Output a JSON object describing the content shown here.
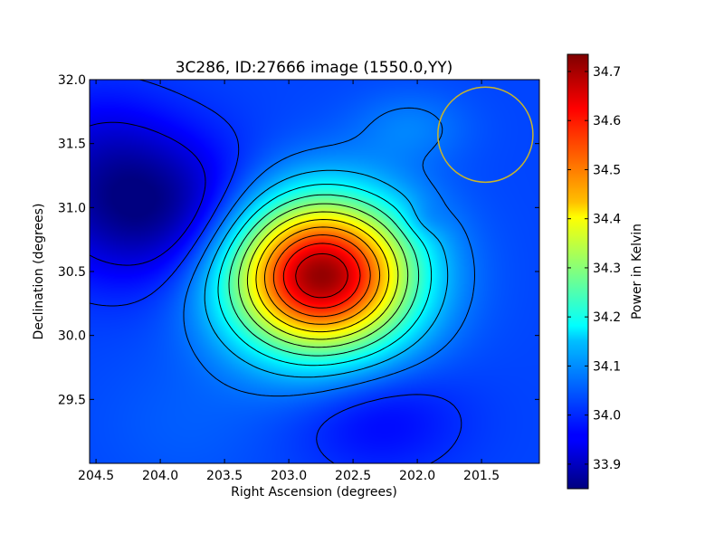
{
  "chart_data": {
    "type": "heatmap",
    "title": "3C286, ID:27666 image (1550.0,YY)",
    "xlabel": "Right Ascension (degrees)",
    "ylabel": "Declination (degrees)",
    "colorbar_label": "Power in Kelvin",
    "colormap": "jet",
    "x_direction": "decreasing",
    "xlim": [
      204.55,
      201.05
    ],
    "ylim": [
      29.0,
      32.0
    ],
    "x_ticks": [
      204.5,
      204.0,
      203.5,
      203.0,
      202.5,
      202.0,
      201.5
    ],
    "x_tick_labels": [
      "204.5",
      "204.0",
      "203.5",
      "203.0",
      "202.5",
      "202.0",
      "201.5"
    ],
    "y_ticks": [
      29.5,
      30.0,
      30.5,
      31.0,
      31.5,
      32.0
    ],
    "y_tick_labels": [
      "29.5",
      "30.0",
      "30.5",
      "31.0",
      "31.5",
      "32.0"
    ],
    "color_range": [
      33.85,
      34.735
    ],
    "colorbar_ticks": [
      33.9,
      34.0,
      34.1,
      34.2,
      34.3,
      34.4,
      34.5,
      34.6,
      34.7
    ],
    "colorbar_tick_labels": [
      "33.9",
      "34.0",
      "34.1",
      "34.2",
      "34.3",
      "34.4",
      "34.5",
      "34.6",
      "34.7"
    ],
    "background_level": 34.02,
    "features": [
      {
        "ra": 202.75,
        "dec": 30.47,
        "amplitude": 0.7,
        "sigma_ra": 0.5,
        "sigma_dec": 0.42
      },
      {
        "ra": 204.1,
        "dec": 31.0,
        "amplitude": -0.17,
        "sigma_ra": 0.55,
        "sigma_dec": 0.4
      },
      {
        "ra": 204.5,
        "dec": 31.5,
        "amplitude": -0.05,
        "sigma_ra": 0.4,
        "sigma_dec": 0.35
      },
      {
        "ra": 202.05,
        "dec": 31.63,
        "amplitude": 0.05,
        "sigma_ra": 0.32,
        "sigma_dec": 0.2
      },
      {
        "ra": 202.3,
        "dec": 29.35,
        "amplitude": -0.06,
        "sigma_ra": 0.45,
        "sigma_dec": 0.3
      },
      {
        "ra": 203.8,
        "dec": 29.3,
        "amplitude": 0.02,
        "sigma_ra": 0.5,
        "sigma_dec": 0.4
      },
      {
        "ra": 201.95,
        "dec": 30.9,
        "amplitude": -0.03,
        "sigma_ra": 0.12,
        "sigma_dec": 0.1
      }
    ],
    "contour_levels": [
      33.94,
      34.0,
      34.06,
      34.12,
      34.18,
      34.24,
      34.3,
      34.36,
      34.42,
      34.48,
      34.54,
      34.6,
      34.66
    ],
    "contour_color": "#000000",
    "beam": {
      "ra": 201.47,
      "dec": 31.57,
      "radius_deg": 0.37,
      "color": "#c9b52a"
    }
  }
}
